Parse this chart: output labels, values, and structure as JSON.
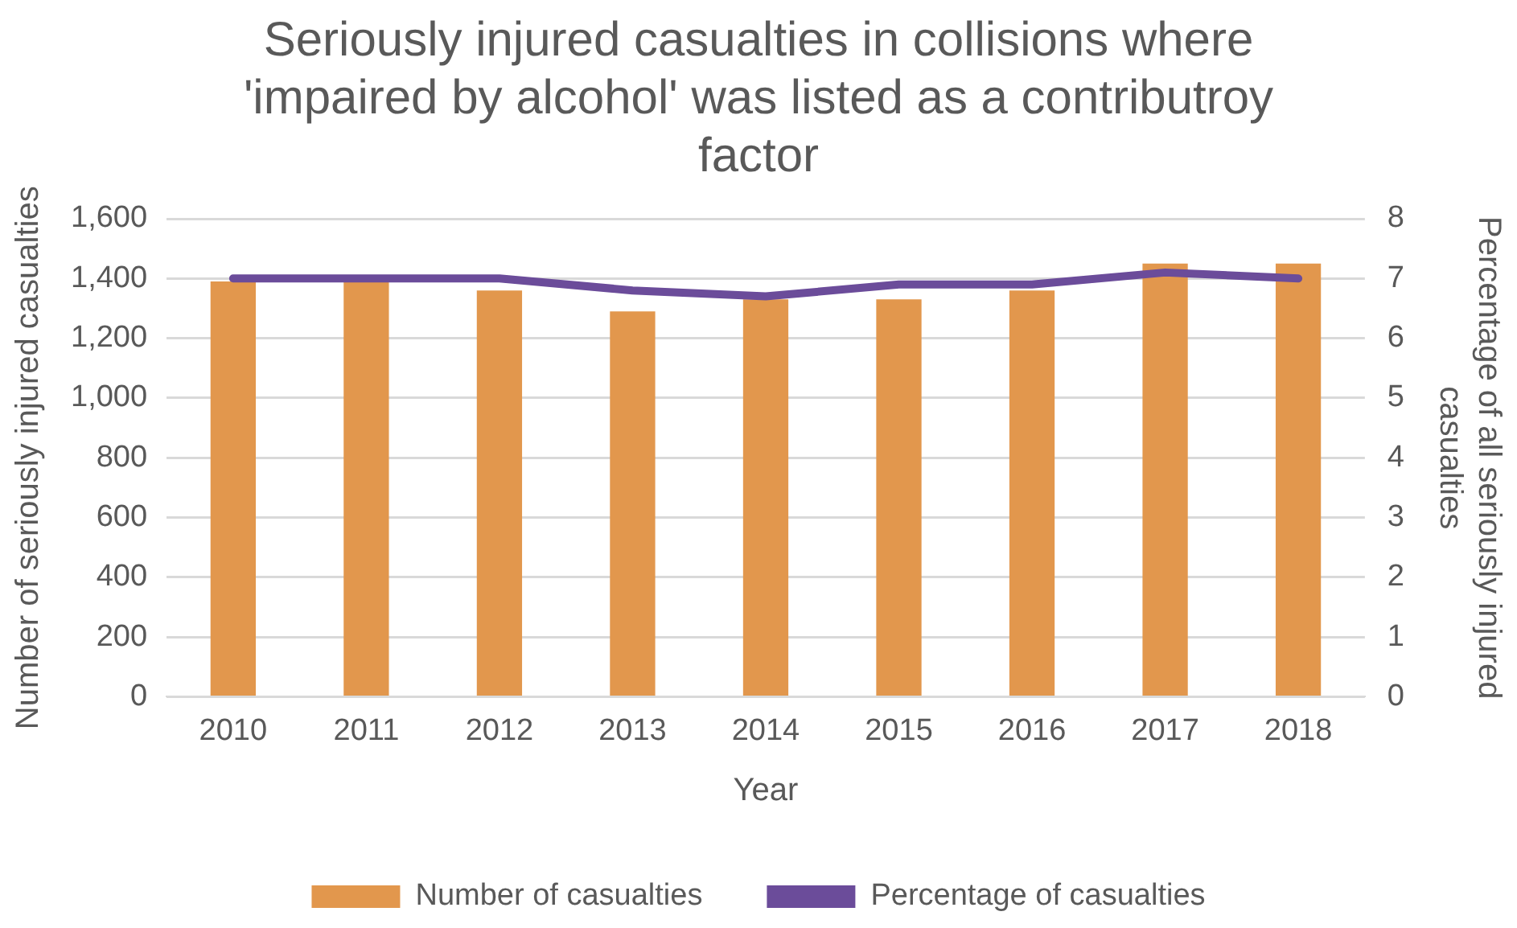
{
  "chart_data": {
    "type": "bar",
    "title": "Seriously injured casualties in collisions where 'impaired by alcohol' was listed as a contributroy factor",
    "xlabel": "Year",
    "ylabel": "Number of seriously injured casualties",
    "y2label": "Percentage of all seriously injured casualties",
    "categories": [
      "2010",
      "2011",
      "2012",
      "2013",
      "2014",
      "2015",
      "2016",
      "2017",
      "2018"
    ],
    "series": [
      {
        "name": "Number of casualties",
        "color": "#e2974d",
        "values": [
          1390,
          1390,
          1360,
          1290,
          1330,
          1330,
          1360,
          1450,
          1450
        ]
      },
      {
        "name": "Percentage of casualties",
        "type": "line",
        "axis": "y2",
        "color": "#6b4c9a",
        "values": [
          7.0,
          7.0,
          7.0,
          6.8,
          6.7,
          6.9,
          6.9,
          7.1,
          7.0
        ]
      }
    ],
    "ylim": [
      0,
      1600
    ],
    "yticks": [
      {
        "value": 0,
        "label": "0"
      },
      {
        "value": 200,
        "label": "200"
      },
      {
        "value": 400,
        "label": "400"
      },
      {
        "value": 600,
        "label": "600"
      },
      {
        "value": 800,
        "label": "800"
      },
      {
        "value": 1000,
        "label": "1,000"
      },
      {
        "value": 1200,
        "label": "1,200"
      },
      {
        "value": 1400,
        "label": "1,400"
      },
      {
        "value": 1600,
        "label": "1,600"
      }
    ],
    "y2lim": [
      0,
      8
    ],
    "y2ticks": [
      0,
      1,
      2,
      3,
      4,
      5,
      6,
      7,
      8
    ],
    "grid": "y",
    "legend": "bottom",
    "marker": "none"
  }
}
